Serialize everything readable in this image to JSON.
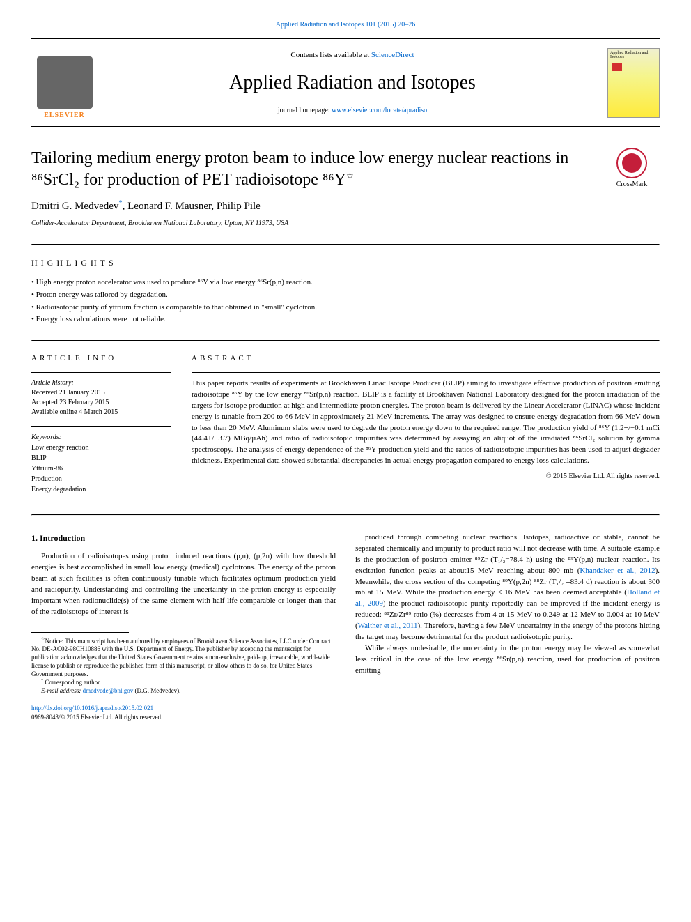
{
  "header": {
    "top_link": "Applied Radiation and Isotopes 101 (2015) 20–26",
    "contents_line_pre": "Contents lists available at ",
    "contents_line_link": "ScienceDirect",
    "journal_name": "Applied Radiation and Isotopes",
    "homepage_pre": "journal homepage: ",
    "homepage_link": "www.elsevier.com/locate/apradiso",
    "elsevier": "ELSEVIER",
    "cover_label": "Applied Radiation and Isotopes"
  },
  "crossmark": {
    "text": "CrossMark"
  },
  "title": "Tailoring medium energy proton beam to induce low energy nuclear reactions in ⁸⁶SrCl₂ for production of PET radioisotope ⁸⁶Y",
  "star": "☆",
  "authors": {
    "a1": "Dmitri G. Medvedev",
    "a1_mark": "*",
    "a2": ", Leonard F. Mausner, Philip Pile"
  },
  "affiliation": "Collider-Accelerator Department, Brookhaven National Laboratory, Upton, NY 11973, USA",
  "highlights": {
    "label": "HIGHLIGHTS",
    "items": [
      "High energy proton accelerator was used to produce ⁸⁶Y via low energy ⁸⁶Sr(p,n) reaction.",
      "Proton energy was tailored by degradation.",
      "Radioisotopic purity of yttrium fraction is comparable to that obtained in \"small\" cyclotron.",
      "Energy loss calculations were not reliable."
    ]
  },
  "article_info": {
    "label": "ARTICLE INFO",
    "history_title": "Article history:",
    "received": "Received 21 January 2015",
    "accepted": "Accepted 23 February 2015",
    "online": "Available online 4 March 2015",
    "keywords_title": "Keywords:",
    "keywords": [
      "Low energy reaction",
      "BLIP",
      "Yttrium-86",
      "Production",
      "Energy degradation"
    ]
  },
  "abstract": {
    "label": "ABSTRACT",
    "text": "This paper reports results of experiments at Brookhaven Linac Isotope Producer (BLIP) aiming to investigate effective production of positron emitting radioisotope ⁸⁶Y by the low energy ⁸⁶Sr(p,n) reaction. BLIP is a facility at Brookhaven National Laboratory designed for the proton irradiation of the targets for isotope production at high and intermediate proton energies. The proton beam is delivered by the Linear Accelerator (LINAC) whose incident energy is tunable from 200 to 66 MeV in approximately 21 MeV increments. The array was designed to ensure energy degradation from 66 MeV down to less than 20 MeV. Aluminum slabs were used to degrade the proton energy down to the required range. The production yield of ⁸⁶Y (1.2+/−0.1 mCi (44.4+/−3.7) MBq/µAh) and ratio of radioisotopic impurities was determined by assaying an aliquot of the irradiated ⁸⁶SrCl₂ solution by gamma spectroscopy. The analysis of energy dependence of the ⁸⁶Y production yield and the ratios of radioisotopic impurities has been used to adjust degrader thickness. Experimental data showed substantial discrepancies in actual energy propagation compared to energy loss calculations.",
    "copyright": "© 2015 Elsevier Ltd. All rights reserved."
  },
  "body": {
    "section1_title": "1.  Introduction",
    "col1_p1": "Production of radioisotopes using proton induced reactions (p,n), (p,2n) with low threshold energies is best accomplished in small low energy (medical) cyclotrons. The energy of the proton beam at such facilities is often continuously tunable which facilitates optimum production yield and radiopurity. Understanding and controlling the uncertainty in the proton energy is especially important when radionuclide(s) of the same element with half-life comparable or longer than that of the radioisotope of interest is",
    "col2_p1_a": "produced through competing nuclear reactions. Isotopes, radioactive or stable, cannot be separated chemically and impurity to product ratio will not decrease with time. A suitable example is the production of positron emitter ⁸⁹Zr (T₁/₂=78.4 h) using the ⁸⁹Y(p,n) nuclear reaction. Its excitation function peaks at about15 MeV reaching about 800 mb (",
    "col2_ref1": "Khandaker et al., 2012",
    "col2_p1_b": "). Meanwhile, the cross section of the competing ⁸⁹Y(p,2n) ⁸⁸Zr (T₁/₂ =83.4 d) reaction is about 300 mb at 15 MeV. While the production energy < 16 MeV has been deemed acceptable (",
    "col2_ref2": "Holland et al., 2009",
    "col2_p1_c": ") the product radioisotopic purity reportedly can be improved if the incident energy is reduced: ⁸⁸Zr/Zr⁸⁹ ratio (%) decreases from 4 at 15 MeV to 0.249 at 12 MeV to 0.004 at 10 MeV (",
    "col2_ref3": "Walther et al., 2011",
    "col2_p1_d": "). Therefore, having a few MeV uncertainty in the energy of the protons hitting the target may become detrimental for the product radioisotopic purity.",
    "col2_p2": "While always undesirable, the uncertainty in the proton energy may be viewed as somewhat less critical in the case of the low energy ⁸⁶Sr(p,n) reaction, used for production of positron emitting"
  },
  "footnotes": {
    "notice_star": "☆",
    "notice": "Notice: This manuscript has been authored by employees of Brookhaven Science Associates, LLC under Contract No. DE-AC02-98CH10886 with the U.S. Department of Energy. The publisher by accepting the manuscript for publication acknowledges that the United States Government retains a non-exclusive, paid-up, irrevocable, world-wide license to publish or reproduce the published form of this manuscript, or allow others to do so, for United States Government purposes.",
    "corresp_mark": "*",
    "corresp": "Corresponding author.",
    "email_label": "E-mail address: ",
    "email": "dmedvede@bnl.gov",
    "email_author": " (D.G. Medvedev)."
  },
  "doi": {
    "link": "http://dx.doi.org/10.1016/j.apradiso.2015.02.021",
    "issn": "0969-8043/© 2015 Elsevier Ltd. All rights reserved."
  },
  "colors": {
    "link": "#0066cc",
    "elsevier_orange": "#f58220",
    "crossmark_red": "#c41e3a"
  }
}
